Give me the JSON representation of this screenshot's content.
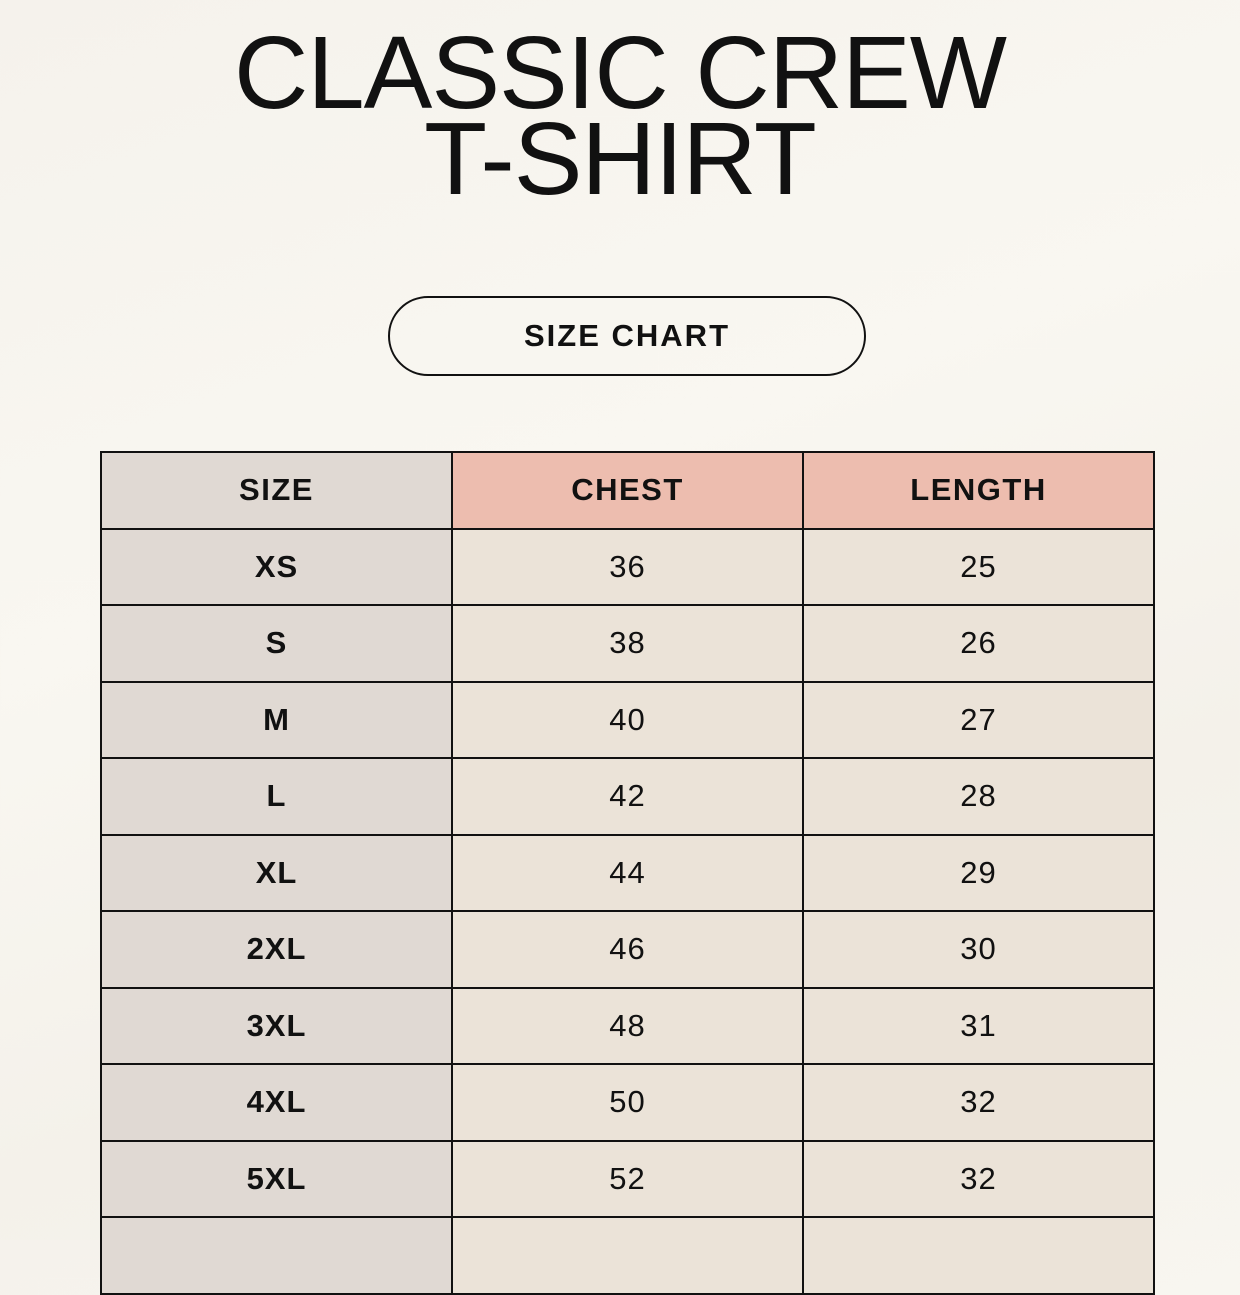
{
  "title": {
    "line1": "CLASSIC CREW",
    "line2": "T-SHIRT"
  },
  "badge": "SIZE CHART",
  "table": {
    "headers": [
      "SIZE",
      "CHEST",
      "LENGTH"
    ],
    "rows": [
      [
        "XS",
        "36",
        "25"
      ],
      [
        "S",
        "38",
        "26"
      ],
      [
        "M",
        "40",
        "27"
      ],
      [
        "L",
        "42",
        "28"
      ],
      [
        "XL",
        "44",
        "29"
      ],
      [
        "2XL",
        "46",
        "30"
      ],
      [
        "3XL",
        "48",
        "31"
      ],
      [
        "4XL",
        "50",
        "32"
      ],
      [
        "5XL",
        "52",
        "32"
      ],
      [
        "",
        "",
        " "
      ]
    ]
  },
  "colors": {
    "size_column": "#e0d9d3",
    "header_accent": "#edbdaf",
    "value_cells": "#ebe3d8"
  }
}
